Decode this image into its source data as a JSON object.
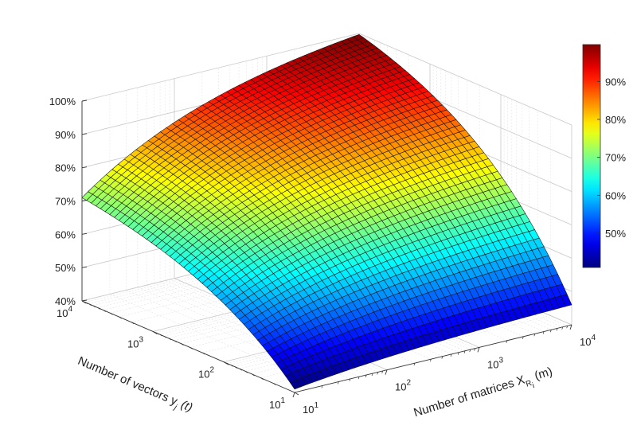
{
  "chart_data": {
    "type": "surface",
    "title": "",
    "xlabel": "Number of matrices X",
    "xlabel_sub": "R",
    "xlabel_subsub": "i",
    "xlabel_suffix": " (m)",
    "ylabel": "Number of vectors y",
    "ylabel_sub": "j",
    "ylabel_suffix": " (t)",
    "x_scale": "log",
    "y_scale": "log",
    "xlim": [
      10,
      10000
    ],
    "ylim": [
      10,
      10000
    ],
    "zlim": [
      40,
      100
    ],
    "x_ticks": [
      {
        "base": "10",
        "exp": "1"
      },
      {
        "base": "10",
        "exp": "2"
      },
      {
        "base": "10",
        "exp": "3"
      },
      {
        "base": "10",
        "exp": "4"
      }
    ],
    "y_ticks": [
      {
        "base": "10",
        "exp": "1"
      },
      {
        "base": "10",
        "exp": "2"
      },
      {
        "base": "10",
        "exp": "3"
      },
      {
        "base": "10",
        "exp": "4"
      }
    ],
    "z_ticks": [
      "40%",
      "50%",
      "60%",
      "70%",
      "80%",
      "90%",
      "100%"
    ],
    "colorbar": {
      "colormap": "jet",
      "range": [
        41,
        99.7
      ],
      "ticks": [
        "50%",
        "60%",
        "70%",
        "80%",
        "90%"
      ]
    },
    "corner_values": [
      {
        "m": 10,
        "t": 10,
        "z": 41
      },
      {
        "m": 10000,
        "t": 10,
        "z": 46
      },
      {
        "m": 10,
        "t": 10000,
        "z": 71
      },
      {
        "m": 10000,
        "t": 10000,
        "z": 99.7
      }
    ],
    "grid": true,
    "shading": "faceted"
  }
}
